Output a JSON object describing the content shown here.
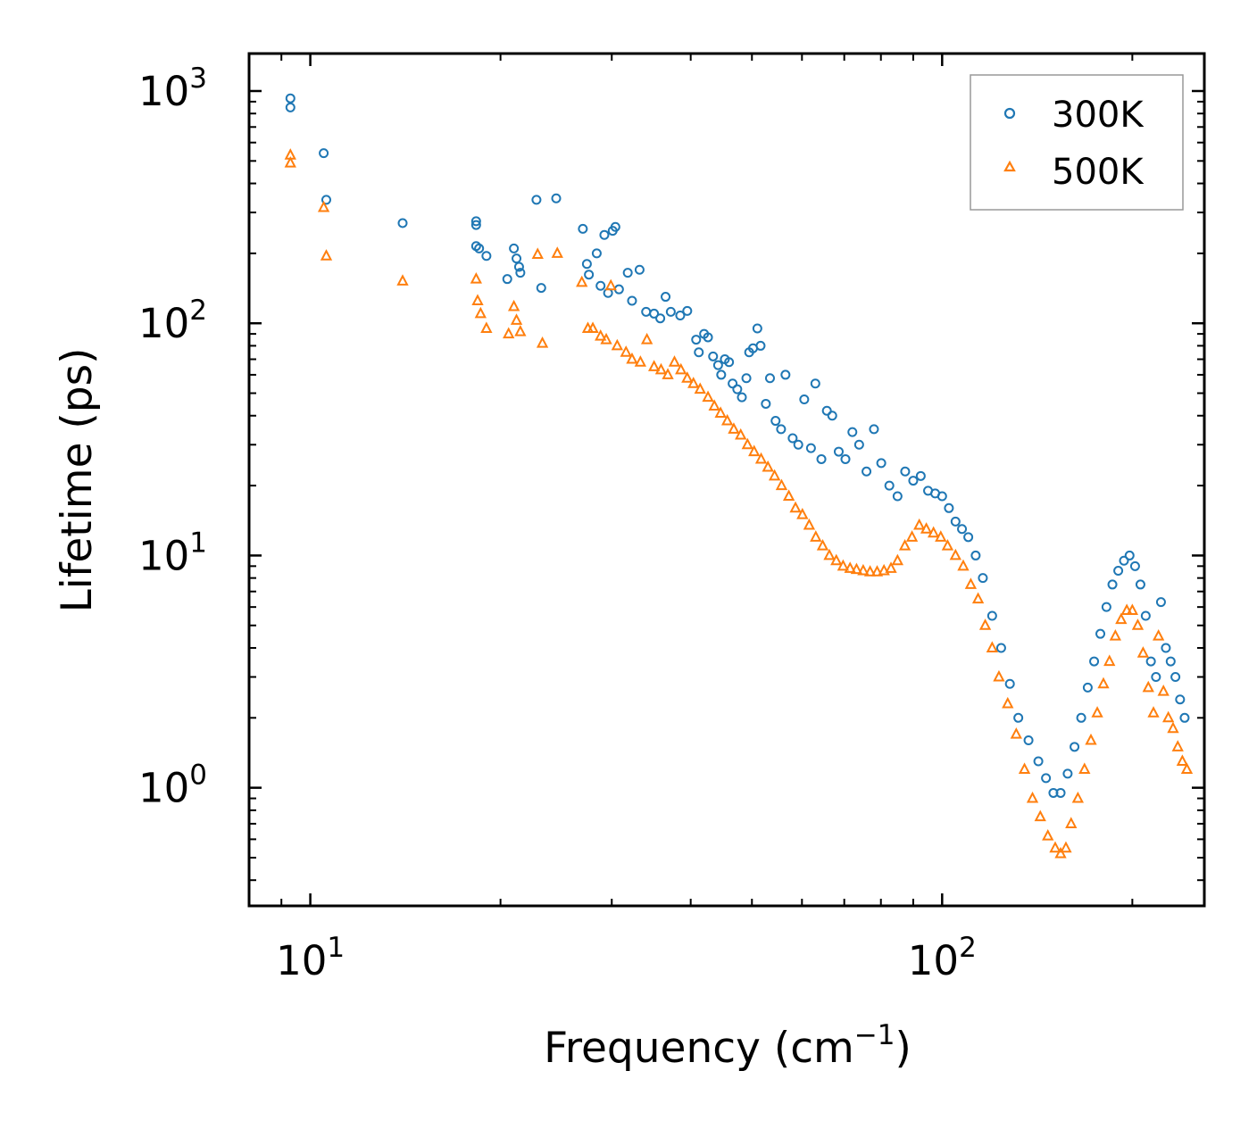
{
  "chart_data": {
    "type": "scatter",
    "title": "",
    "xlabel": "Frequency (cm",
    "xlabel_sup": "−1",
    "xlabel_suffix": ")",
    "ylabel": "Lifetime (ps)",
    "xscale": "log",
    "yscale": "log",
    "xlim": [
      8,
      260
    ],
    "ylim": [
      0.31,
      1450
    ],
    "x_ticks": [
      {
        "value": 10,
        "base": "10",
        "exp": "1"
      },
      {
        "value": 100,
        "base": "10",
        "exp": "2"
      }
    ],
    "y_ticks": [
      {
        "value": 1,
        "base": "10",
        "exp": "0"
      },
      {
        "value": 10,
        "base": "10",
        "exp": "1"
      },
      {
        "value": 100,
        "base": "10",
        "exp": "2"
      },
      {
        "value": 1000,
        "base": "10",
        "exp": "3"
      }
    ],
    "legend_position": "top-right",
    "series": [
      {
        "name": "300K",
        "marker": "circle",
        "color": "#1f77b4",
        "points": [
          [
            9.3,
            930
          ],
          [
            9.3,
            850
          ],
          [
            10.5,
            540
          ],
          [
            10.6,
            340
          ],
          [
            14,
            270
          ],
          [
            18.3,
            275
          ],
          [
            18.3,
            265
          ],
          [
            18.3,
            215
          ],
          [
            18.5,
            210
          ],
          [
            19,
            195
          ],
          [
            20.5,
            155
          ],
          [
            21,
            210
          ],
          [
            21.2,
            190
          ],
          [
            21.4,
            175
          ],
          [
            21.5,
            165
          ],
          [
            22.8,
            340
          ],
          [
            23.2,
            142
          ],
          [
            24.5,
            345
          ],
          [
            27.0,
            255
          ],
          [
            27.4,
            180
          ],
          [
            27.6,
            162
          ],
          [
            28.4,
            200
          ],
          [
            28.8,
            145
          ],
          [
            29.2,
            240
          ],
          [
            29.6,
            135
          ],
          [
            30.1,
            250
          ],
          [
            30.4,
            260
          ],
          [
            30.8,
            140
          ],
          [
            31.8,
            165
          ],
          [
            32.3,
            125
          ],
          [
            33.2,
            170
          ],
          [
            34,
            112
          ],
          [
            35,
            110
          ],
          [
            35.8,
            105
          ],
          [
            36.5,
            130
          ],
          [
            37.2,
            112
          ],
          [
            38.5,
            108
          ],
          [
            39.5,
            113
          ],
          [
            40.8,
            85
          ],
          [
            41.2,
            75
          ],
          [
            42,
            90
          ],
          [
            42.6,
            87
          ],
          [
            43.4,
            72
          ],
          [
            44.2,
            66
          ],
          [
            44.7,
            60
          ],
          [
            45.3,
            70
          ],
          [
            46,
            68
          ],
          [
            46.6,
            55
          ],
          [
            47.4,
            52
          ],
          [
            48.2,
            48
          ],
          [
            49,
            58
          ],
          [
            49.5,
            75
          ],
          [
            50.2,
            78
          ],
          [
            51,
            95
          ],
          [
            51.6,
            80
          ],
          [
            52.6,
            45
          ],
          [
            53.4,
            58
          ],
          [
            54.5,
            38
          ],
          [
            55.6,
            35
          ],
          [
            56.5,
            60
          ],
          [
            58,
            32
          ],
          [
            59.2,
            30
          ],
          [
            60.5,
            47
          ],
          [
            62,
            29
          ],
          [
            63,
            55
          ],
          [
            64.4,
            26
          ],
          [
            65.7,
            42
          ],
          [
            67,
            40
          ],
          [
            68.6,
            28
          ],
          [
            70.3,
            26
          ],
          [
            72.1,
            34
          ],
          [
            73.9,
            30
          ],
          [
            75.9,
            23
          ],
          [
            78,
            35
          ],
          [
            80.1,
            25
          ],
          [
            82.5,
            20
          ],
          [
            85,
            18
          ],
          [
            87.4,
            23
          ],
          [
            90,
            21
          ],
          [
            92.5,
            22
          ],
          [
            95,
            19
          ],
          [
            97.5,
            18.5
          ],
          [
            100,
            18
          ],
          [
            102.5,
            16
          ],
          [
            105,
            14
          ],
          [
            107.5,
            13
          ],
          [
            110,
            12
          ],
          [
            113,
            10
          ],
          [
            116,
            8
          ],
          [
            120,
            5.5
          ],
          [
            124,
            4
          ],
          [
            128,
            2.8
          ],
          [
            132,
            2
          ],
          [
            137,
            1.6
          ],
          [
            142,
            1.3
          ],
          [
            146,
            1.1
          ],
          [
            150,
            0.95
          ],
          [
            154,
            0.95
          ],
          [
            158,
            1.15
          ],
          [
            162,
            1.5
          ],
          [
            166,
            2
          ],
          [
            170,
            2.7
          ],
          [
            174,
            3.5
          ],
          [
            178,
            4.6
          ],
          [
            182,
            6
          ],
          [
            186,
            7.5
          ],
          [
            190,
            8.6
          ],
          [
            194,
            9.5
          ],
          [
            198,
            10
          ],
          [
            202,
            9
          ],
          [
            206,
            7.5
          ],
          [
            210,
            5.5
          ],
          [
            214,
            3.5
          ],
          [
            218,
            3
          ],
          [
            222,
            6.3
          ],
          [
            226,
            4
          ],
          [
            230,
            3.5
          ],
          [
            234,
            3
          ],
          [
            238,
            2.4
          ],
          [
            242,
            2
          ]
        ]
      },
      {
        "name": "500K",
        "marker": "triangle",
        "color": "#ff7f0e",
        "points": [
          [
            9.3,
            530
          ],
          [
            9.3,
            490
          ],
          [
            10.5,
            315
          ],
          [
            10.6,
            195
          ],
          [
            14,
            152
          ],
          [
            18.3,
            155
          ],
          [
            18.4,
            125
          ],
          [
            18.6,
            110
          ],
          [
            19,
            95
          ],
          [
            20.6,
            90
          ],
          [
            21,
            118
          ],
          [
            21.2,
            103
          ],
          [
            21.5,
            92
          ],
          [
            22.9,
            198
          ],
          [
            23.3,
            82
          ],
          [
            24.6,
            200
          ],
          [
            26.9,
            150
          ],
          [
            27.5,
            95
          ],
          [
            28,
            95
          ],
          [
            28.8,
            88
          ],
          [
            29.4,
            85
          ],
          [
            29.9,
            145
          ],
          [
            30.6,
            80
          ],
          [
            31.6,
            75
          ],
          [
            32.3,
            70
          ],
          [
            33.3,
            68
          ],
          [
            34.1,
            85
          ],
          [
            35,
            65
          ],
          [
            35.9,
            63
          ],
          [
            36.8,
            60
          ],
          [
            37.7,
            68
          ],
          [
            38.6,
            63
          ],
          [
            39.5,
            58
          ],
          [
            40.4,
            55
          ],
          [
            41.4,
            52
          ],
          [
            42.6,
            48
          ],
          [
            43.6,
            44
          ],
          [
            44.6,
            41
          ],
          [
            45.7,
            38
          ],
          [
            46.8,
            35
          ],
          [
            48,
            33
          ],
          [
            49.2,
            30
          ],
          [
            50.4,
            28
          ],
          [
            51.7,
            26
          ],
          [
            53,
            24
          ],
          [
            54.3,
            22
          ],
          [
            55.7,
            20
          ],
          [
            57.2,
            18
          ],
          [
            58.6,
            16
          ],
          [
            60.1,
            15
          ],
          [
            61.6,
            13.5
          ],
          [
            63.1,
            12
          ],
          [
            64.7,
            11
          ],
          [
            66.3,
            10
          ],
          [
            68,
            9.5
          ],
          [
            69.7,
            9
          ],
          [
            71.5,
            8.8
          ],
          [
            73.2,
            8.7
          ],
          [
            75,
            8.6
          ],
          [
            76.9,
            8.5
          ],
          [
            78.9,
            8.5
          ],
          [
            80.9,
            8.6
          ],
          [
            83,
            8.8
          ],
          [
            85,
            9.5
          ],
          [
            87.3,
            11
          ],
          [
            89.6,
            12
          ],
          [
            92,
            13.5
          ],
          [
            94.4,
            13
          ],
          [
            96.9,
            12.5
          ],
          [
            99.5,
            12
          ],
          [
            102,
            11
          ],
          [
            105,
            10
          ],
          [
            108,
            9
          ],
          [
            111,
            7.5
          ],
          [
            114,
            6.5
          ],
          [
            117,
            5
          ],
          [
            120,
            4
          ],
          [
            123,
            3
          ],
          [
            127,
            2.3
          ],
          [
            131,
            1.7
          ],
          [
            135,
            1.2
          ],
          [
            139,
            0.9
          ],
          [
            143,
            0.75
          ],
          [
            147,
            0.62
          ],
          [
            151,
            0.55
          ],
          [
            154,
            0.52
          ],
          [
            157,
            0.55
          ],
          [
            160,
            0.7
          ],
          [
            164,
            0.9
          ],
          [
            168,
            1.2
          ],
          [
            172,
            1.6
          ],
          [
            176,
            2.1
          ],
          [
            180,
            2.8
          ],
          [
            184,
            3.5
          ],
          [
            188,
            4.5
          ],
          [
            192,
            5.3
          ],
          [
            196,
            5.8
          ],
          [
            200,
            5.8
          ],
          [
            204,
            5
          ],
          [
            208,
            3.8
          ],
          [
            212,
            2.7
          ],
          [
            216,
            2.1
          ],
          [
            220,
            4.5
          ],
          [
            224,
            2.6
          ],
          [
            228,
            2
          ],
          [
            232,
            1.8
          ],
          [
            236,
            1.5
          ],
          [
            240,
            1.3
          ],
          [
            244,
            1.2
          ]
        ]
      }
    ]
  }
}
